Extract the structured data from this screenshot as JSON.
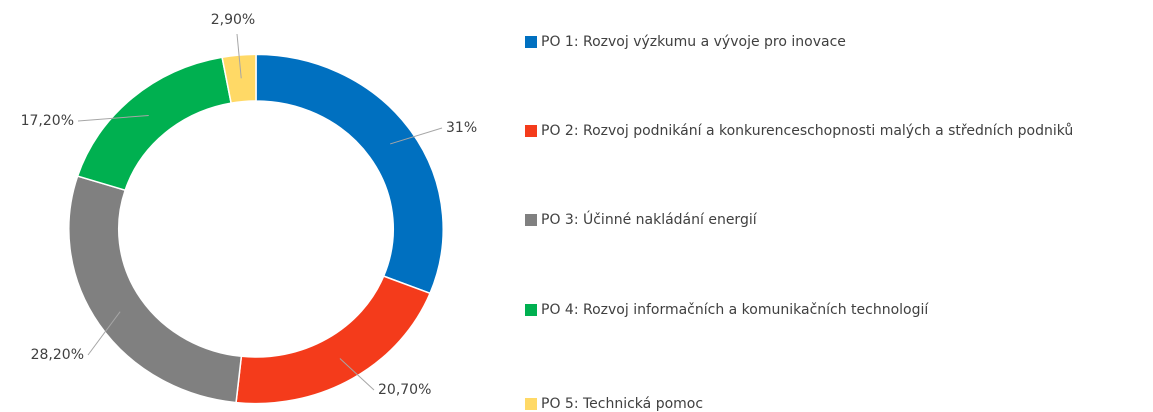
{
  "chart_data": {
    "type": "donut",
    "categories": [
      "PO 1: Rozvoj výzkumu a vývoje pro inovace",
      "PO 2: Rozvoj podnikání a konkurenceschopnosti malých a středních podniků",
      "PO 3: Účinné nakládání energií",
      "PO 4: Rozvoj informačních a komunikačních technologií",
      "PO 5: Technická pomoc"
    ],
    "values": [
      31,
      20.7,
      28.2,
      17.2,
      2.9
    ],
    "value_labels": [
      "31%",
      "20,70%",
      "28,20%",
      "17,20%",
      "2,90%"
    ],
    "colors": [
      "#0070C0",
      "#F43B1B",
      "#808080",
      "#00B050",
      "#FFD966"
    ],
    "legend": "right"
  }
}
